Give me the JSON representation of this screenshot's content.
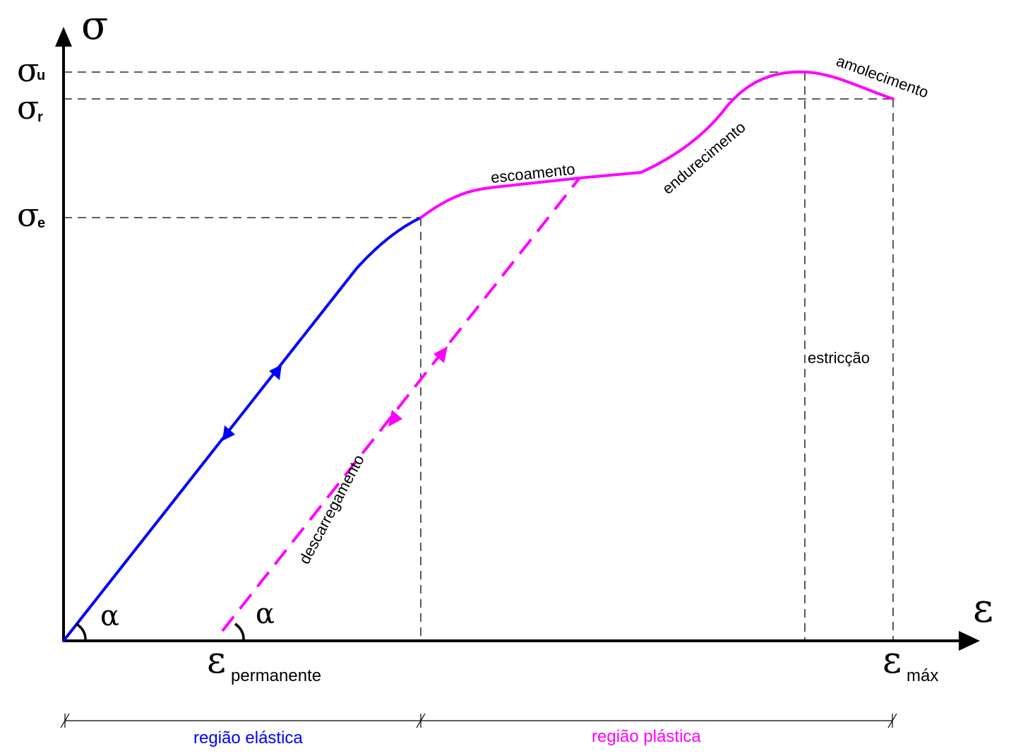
{
  "axes": {
    "y_symbol": "σ",
    "x_symbol": "ε"
  },
  "stress_levels": {
    "sigma_u": {
      "symbol": "σ",
      "subscript": "u"
    },
    "sigma_r": {
      "symbol": "σ",
      "subscript": "r"
    },
    "sigma_e": {
      "symbol": "σ",
      "subscript": "e"
    }
  },
  "strain_labels": {
    "permanent": {
      "symbol": "ε",
      "subscript": "permanente"
    },
    "max": {
      "symbol": "ε",
      "subscript": "máx"
    }
  },
  "angles": {
    "origin": "α",
    "permanent": "α"
  },
  "curve_labels": {
    "yielding": "escoamento",
    "hardening": "endurecimento",
    "softening": "amolecimento",
    "necking": "estricção",
    "unloading": "descarregamento"
  },
  "regions": {
    "elastic": "região elástica",
    "plastic": "região plástica"
  },
  "colors": {
    "elastic": "#0000ff",
    "plastic": "#ff00ff",
    "axes": "#000000",
    "guides": "#000000",
    "background": "#ffffff"
  }
}
